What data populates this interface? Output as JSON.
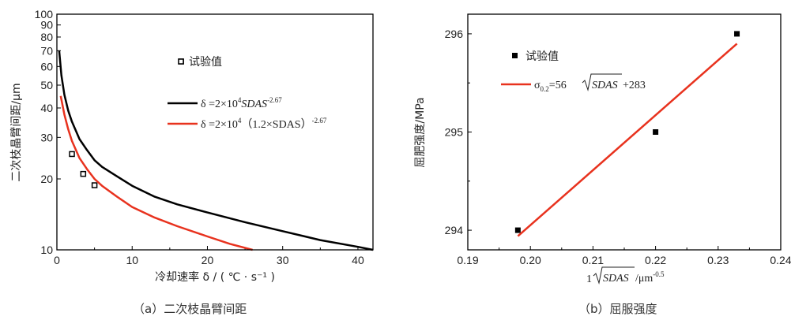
{
  "chart_data": [
    {
      "type": "line",
      "caption": "（a）二次枝晶臂间距",
      "xlabel": "冷却速率 δ / ( ℃ · s⁻¹ )",
      "ylabel": "二次枝晶臂间距/μm",
      "xlim": [
        0,
        42
      ],
      "ylim": [
        10,
        100
      ],
      "yscale": "log",
      "xticks": [
        0,
        10,
        20,
        30,
        40
      ],
      "yticks": [
        10,
        20,
        30,
        40,
        50,
        60,
        70,
        80,
        90,
        100
      ],
      "legend_placement": "center-right",
      "series": [
        {
          "name": "试验值",
          "kind": "scatter",
          "x": [
            2.0,
            3.5,
            5.0,
            16.5
          ],
          "y": [
            25.5,
            21,
            18.8,
            63
          ]
        },
        {
          "name": "δ =2×10⁴SDAS⁻²·⁶⁷",
          "kind": "line",
          "color": "#000000",
          "x": [
            0.3,
            0.6,
            1,
            1.5,
            2,
            3,
            4,
            5,
            6,
            8,
            10,
            13,
            16,
            20,
            25,
            30,
            35,
            40,
            42
          ],
          "y": [
            70,
            55,
            45.5,
            39,
            35,
            29.5,
            26.5,
            24,
            22.5,
            20.5,
            18.7,
            16.8,
            15.6,
            14.4,
            13.1,
            12.0,
            11.0,
            10.3,
            10.0
          ]
        },
        {
          "name": "δ =2×10⁴（1.2×SDAS）⁻²·⁶⁷",
          "kind": "line",
          "color": "#e8321e",
          "x": [
            0.5,
            1,
            1.5,
            2,
            3,
            4,
            5,
            6,
            8,
            10,
            13,
            16,
            20,
            23,
            26
          ],
          "y": [
            45,
            37.5,
            32.5,
            29,
            24.5,
            22,
            20,
            18.7,
            16.8,
            15.2,
            13.7,
            12.6,
            11.4,
            10.6,
            10.0
          ]
        }
      ],
      "legend_labels": {
        "test": "试验值",
        "black_prefix": "δ =2×10",
        "black_exp": "4",
        "black_var": "SDAS",
        "black_pow": "-2.67",
        "red_prefix": "δ =2×10",
        "red_exp": "4",
        "red_mid": "（1.2×SDAS）",
        "red_pow": "-2.67"
      }
    },
    {
      "type": "scatter",
      "caption": "（b）屈服强度",
      "xlabel": "1/√SDAS/μm⁻⁰·⁵",
      "ylabel": "屈肥强度/MPa",
      "xlim": [
        0.19,
        0.24
      ],
      "ylim": [
        293.8,
        296.2
      ],
      "xticks": [
        "0.19",
        "0.20",
        "0.21",
        "0.22",
        "0.23",
        "0.24"
      ],
      "yticks": [
        "294",
        "295",
        "296"
      ],
      "legend_placement": "top-left",
      "series": [
        {
          "name": "试验值",
          "kind": "scatter",
          "x": [
            0.198,
            0.22,
            0.233
          ],
          "y": [
            294.0,
            295.0,
            296.0
          ]
        },
        {
          "name": "σ0.2=56√SDAS+283",
          "kind": "line",
          "color": "#e8321e",
          "x": [
            0.198,
            0.233
          ],
          "y": [
            293.94,
            295.9
          ]
        }
      ],
      "legend_labels": {
        "test": "试验值",
        "fit_sigma": "σ",
        "fit_sub": "0.2",
        "fit_eq": "=56",
        "fit_var": "SDAS",
        "fit_const": "+283"
      },
      "xlabel_parts": {
        "one": "1",
        "var": "SDAS",
        "unit": "/μm",
        "pow": "-0.5"
      }
    }
  ]
}
